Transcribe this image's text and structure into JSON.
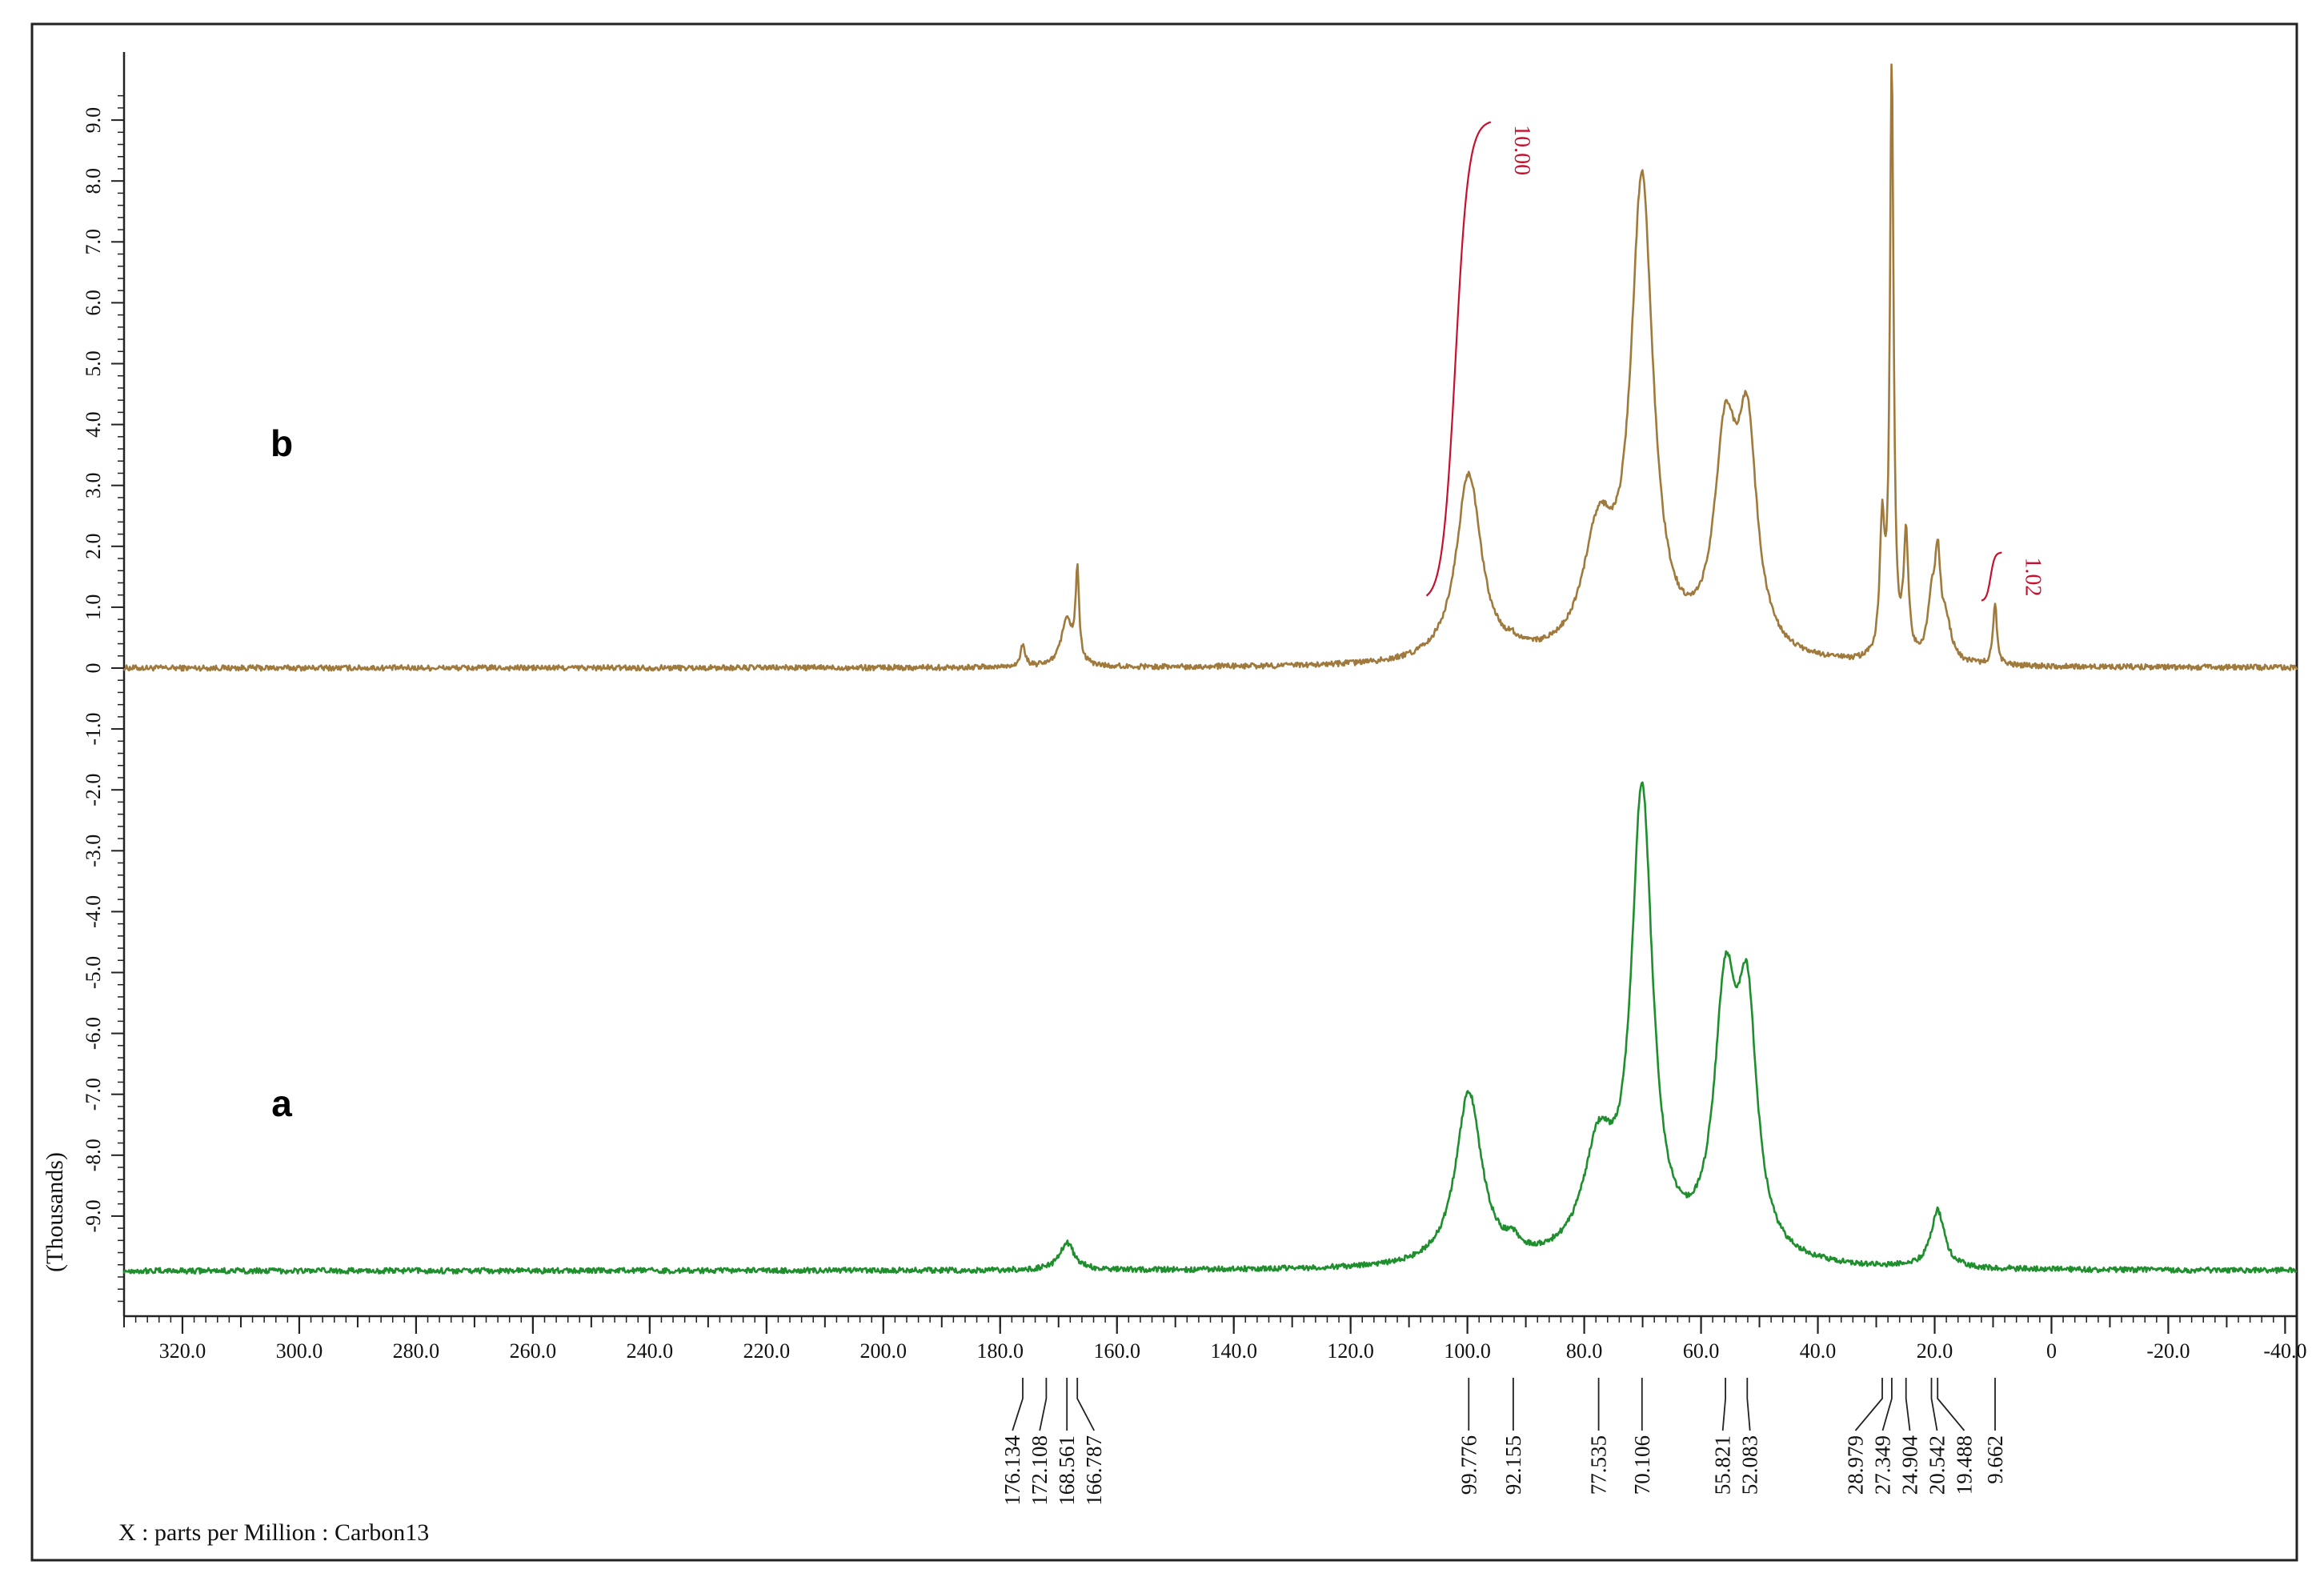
{
  "chart_data": {
    "type": "line",
    "xlabel": "X : parts per Million : Carbon13",
    "ylabel": "(Thousands)",
    "xlim": [
      330,
      -42
    ],
    "ylim": [
      -10.5,
      9.5
    ],
    "x_ticks": [
      320,
      300,
      280,
      260,
      240,
      220,
      200,
      180,
      160,
      140,
      120,
      100,
      80,
      60,
      40,
      20,
      0,
      -20,
      -40
    ],
    "x_tick_labels": [
      "320.0",
      "300.0",
      "280.0",
      "260.0",
      "240.0",
      "220.0",
      "200.0",
      "180.0",
      "160.0",
      "140.0",
      "120.0",
      "100.0",
      "80.0",
      "60.0",
      "40.0",
      "20.0",
      "0",
      "-20.0",
      "-40.0"
    ],
    "y_ticks": [
      9,
      8,
      7,
      6,
      5,
      4,
      3,
      2,
      1,
      0,
      -1,
      -2,
      -3,
      -4,
      -5,
      -6,
      -7,
      -8,
      -9
    ],
    "y_tick_labels": [
      "9.0",
      "8.0",
      "7.0",
      "6.0",
      "5.0",
      "4.0",
      "3.0",
      "2.0",
      "1.0",
      "0",
      "-1.0",
      "-2.0",
      "-3.0",
      "-4.0",
      "-5.0",
      "-6.0",
      "-7.0",
      "-8.0",
      "-9.0"
    ],
    "series": [
      {
        "name": "b",
        "color": "#a07a3c",
        "baseline": 0,
        "peaks": [
          {
            "center": 176.134,
            "height": 0.35,
            "width": 0.5
          },
          {
            "center": 168.561,
            "height": 0.75,
            "width": 1.2
          },
          {
            "center": 166.787,
            "height": 1.45,
            "width": 0.35
          },
          {
            "center": 99.776,
            "height": 3.1,
            "width": 2.6
          },
          {
            "center": 92.155,
            "height": 0.1,
            "width": 1.2
          },
          {
            "center": 77.535,
            "height": 1.9,
            "width": 3.2
          },
          {
            "center": 70.106,
            "height": 7.7,
            "width": 2.3
          },
          {
            "center": 55.821,
            "height": 3.35,
            "width": 2.3
          },
          {
            "center": 52.083,
            "height": 3.4,
            "width": 2.0
          },
          {
            "center": 28.979,
            "height": 2.1,
            "width": 0.5
          },
          {
            "center": 27.349,
            "height": 9.7,
            "width": 0.38
          },
          {
            "center": 24.904,
            "height": 1.95,
            "width": 0.5
          },
          {
            "center": 20.542,
            "height": 0.85,
            "width": 0.8
          },
          {
            "center": 19.488,
            "height": 1.55,
            "width": 0.6
          },
          {
            "center": 18.0,
            "height": 0.6,
            "width": 1.0
          },
          {
            "center": 9.662,
            "height": 1.0,
            "width": 0.4
          }
        ]
      },
      {
        "name": "a",
        "color": "#1f8f2e",
        "baseline": -9.9,
        "peaks": [
          {
            "center": 168.561,
            "height": 0.45,
            "width": 1.5
          },
          {
            "center": 99.776,
            "height": 2.85,
            "width": 2.7
          },
          {
            "center": 92.155,
            "height": 0.2,
            "width": 1.3
          },
          {
            "center": 77.535,
            "height": 1.75,
            "width": 3.2
          },
          {
            "center": 70.106,
            "height": 7.6,
            "width": 2.2
          },
          {
            "center": 55.821,
            "height": 4.15,
            "width": 2.3
          },
          {
            "center": 52.083,
            "height": 3.75,
            "width": 2.0
          },
          {
            "center": 19.488,
            "height": 0.95,
            "width": 1.4
          }
        ]
      }
    ],
    "peak_labels": [
      "176.134",
      "172.108",
      "168.561",
      "166.787",
      "99.776",
      "92.155",
      "77.535",
      "70.106",
      "55.821",
      "52.083",
      "28.979",
      "27.349",
      "24.904",
      "20.542",
      "19.488",
      "9.662"
    ],
    "peak_positions": [
      176.134,
      172.108,
      168.561,
      166.787,
      99.776,
      92.155,
      77.535,
      70.106,
      55.821,
      52.083,
      28.979,
      27.349,
      24.904,
      20.542,
      19.488,
      9.662
    ],
    "integrals": [
      {
        "label": "10.00",
        "from": 107,
        "to": 96,
        "y_start": 1.1,
        "y_end": 9.0,
        "color": "#c8102e"
      },
      {
        "label": "1.02",
        "from": 12,
        "to": 8.5,
        "y_start": 1.1,
        "y_end": 1.9,
        "color": "#c8102e"
      }
    ],
    "trace_labels": [
      {
        "text": "b",
        "series": "b"
      },
      {
        "text": "a",
        "series": "a"
      }
    ]
  }
}
